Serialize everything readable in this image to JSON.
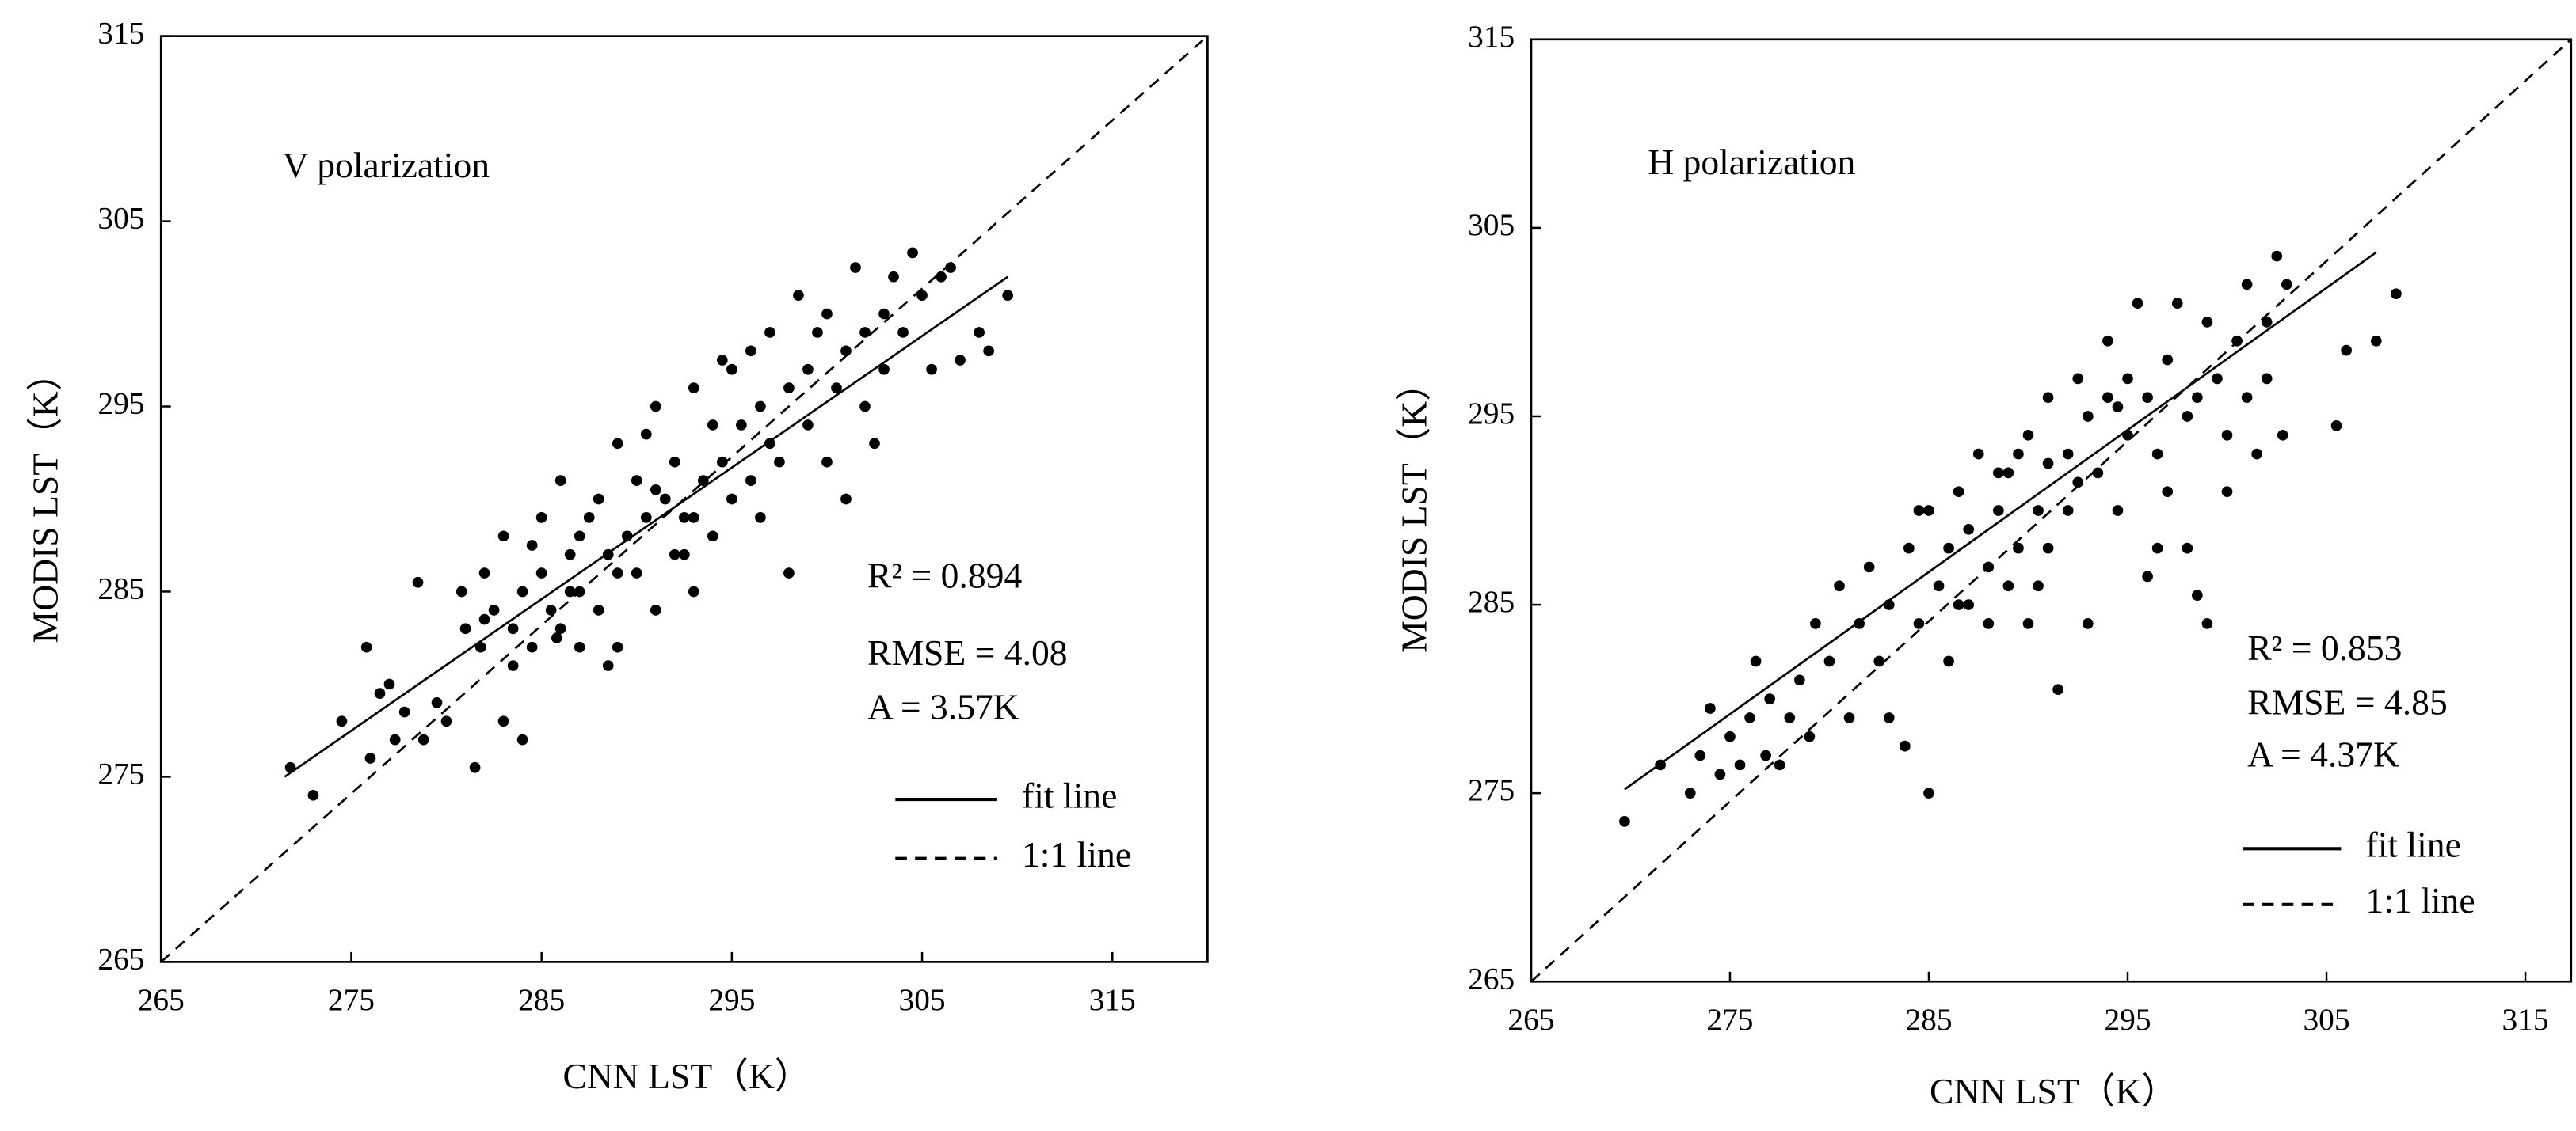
{
  "chart_data": [
    {
      "type": "scatter",
      "xlabel": "CNN LST（K）",
      "ylabel": "MODIS LST（K）",
      "annotation": "V polarization",
      "stats": [
        "R² = 0.894",
        "RMSE = 4.08",
        "A = 3.57K"
      ],
      "color": "#000000",
      "xlim": [
        265,
        320
      ],
      "ylim": [
        265,
        315
      ],
      "xticks": [
        265,
        275,
        285,
        295,
        305,
        315
      ],
      "yticks": [
        265,
        275,
        285,
        295,
        305,
        315
      ],
      "lines": [
        {
          "name": "fit line",
          "style": "solid",
          "x": [
            271.5,
            309.5
          ],
          "y": [
            275,
            302
          ]
        },
        {
          "name": "1:1 line",
          "style": "dashed"
        }
      ],
      "x": [
        271.8,
        273,
        274.5,
        275.8,
        276,
        276.5,
        277,
        277.3,
        277.8,
        278.5,
        278.8,
        279.5,
        280,
        280.8,
        281,
        281.5,
        281.8,
        282,
        282.5,
        283,
        283,
        283.5,
        284,
        284,
        284.5,
        285,
        285,
        285.5,
        286,
        286,
        286.5,
        287,
        287,
        287.5,
        288,
        288,
        288.5,
        289,
        289,
        289.5,
        290,
        290,
        290.5,
        291,
        291,
        291.5,
        292,
        292,
        292.5,
        293,
        293,
        293.5,
        294,
        294,
        294.5,
        295,
        295,
        295.5,
        296,
        296,
        296.5,
        297,
        297,
        297.5,
        298,
        298,
        298.5,
        299,
        299,
        299.5,
        300,
        300,
        300.5,
        301,
        301,
        301.5,
        302,
        302,
        302.5,
        303,
        303,
        303.5,
        304,
        304.5,
        305,
        305.5,
        306,
        306.5,
        307,
        308,
        308.5,
        309.5,
        284.5,
        286.5,
        288.5,
        290.5,
        292.5,
        287,
        289,
        291,
        293,
        285.8,
        283.5,
        282,
        296.5,
        294.5
      ],
      "values": [
        275.5,
        274,
        278,
        282,
        276,
        279.5,
        280,
        277,
        278.5,
        285.5,
        277,
        279,
        278,
        285,
        283,
        275.5,
        282,
        286,
        284,
        278,
        288,
        283,
        285,
        277,
        282,
        286,
        289,
        284,
        283,
        291,
        287,
        285,
        282,
        289,
        290,
        284,
        287,
        293,
        282,
        288,
        286,
        291,
        289,
        295,
        284,
        290,
        287,
        292,
        289,
        296,
        285,
        291,
        288,
        294,
        292,
        297,
        290,
        294,
        291,
        298,
        295,
        293,
        299,
        292,
        296,
        286,
        301,
        294,
        297,
        299,
        292,
        300,
        296,
        298,
        290,
        302.5,
        295,
        299,
        293,
        297,
        300,
        302,
        299,
        303.3,
        301,
        297,
        302,
        302.5,
        297.5,
        299,
        298,
        301,
        287.5,
        285,
        281,
        293.5,
        287,
        288,
        286,
        290.5,
        289,
        282.5,
        281,
        283.5,
        289,
        297.5
      ]
    },
    {
      "type": "scatter",
      "xlabel": "CNN LST（K）",
      "ylabel": "MODIS LST（K）",
      "annotation": "H polarization",
      "stats": [
        "R² = 0.853",
        "RMSE = 4.85",
        "A = 4.37K"
      ],
      "color": "#000000",
      "xlim": [
        265,
        317.3
      ],
      "ylim": [
        265,
        315
      ],
      "xticks": [
        265,
        275,
        285,
        295,
        305,
        315
      ],
      "yticks": [
        265,
        275,
        285,
        295,
        305,
        315
      ],
      "lines": [
        {
          "name": "fit line",
          "style": "solid",
          "x": [
            269.7,
            307.5
          ],
          "y": [
            275.2,
            303.7
          ]
        },
        {
          "name": "1:1 line",
          "style": "dashed"
        }
      ],
      "x": [
        269.7,
        271.5,
        273,
        273.5,
        274,
        274.5,
        275,
        275.5,
        276,
        276.3,
        276.8,
        277,
        277.5,
        278,
        278.5,
        279,
        279.3,
        280,
        280.5,
        281,
        281.5,
        282,
        282.5,
        283,
        283,
        283.8,
        284,
        284.5,
        285,
        285,
        285.5,
        286,
        286,
        286.5,
        287,
        287,
        287.5,
        288,
        288,
        288.5,
        289,
        289,
        289.5,
        290,
        290,
        290.5,
        291,
        291,
        291.5,
        292,
        292,
        292.5,
        293,
        293,
        293.5,
        294,
        294,
        294.5,
        295,
        295,
        295.5,
        296,
        296,
        296.5,
        297,
        297,
        297.5,
        298,
        298,
        298.5,
        299,
        299,
        299.5,
        300,
        300,
        300.5,
        301,
        301,
        301.5,
        302,
        302,
        302.5,
        302.8,
        303,
        305.5,
        306,
        307.5,
        308.5,
        296.5,
        298.5,
        288.5,
        290.5,
        286.5,
        284.5,
        292.5,
        294.5,
        289.5,
        291
      ],
      "values": [
        273.5,
        276.5,
        275,
        277,
        279.5,
        276,
        278,
        276.5,
        279,
        282,
        277,
        280,
        276.5,
        279,
        281,
        278,
        284,
        282,
        286,
        279,
        284,
        287,
        282,
        285,
        279,
        277.5,
        288,
        284,
        275,
        290,
        286,
        288,
        282,
        291,
        285,
        289,
        293,
        287,
        284,
        290,
        292,
        286,
        288,
        294,
        284,
        290,
        296,
        288,
        280.5,
        293,
        290,
        297,
        284,
        295,
        292,
        299,
        296,
        290,
        297,
        294,
        301,
        296,
        286.5,
        293,
        298,
        291,
        301,
        295,
        288,
        296,
        300,
        284,
        297,
        294,
        291,
        299,
        302,
        296,
        293,
        300,
        297,
        303.5,
        294,
        302,
        294.5,
        298.5,
        299,
        301.5,
        288,
        285.5,
        292,
        286,
        285,
        290,
        291.5,
        295.5,
        293,
        292.5
      ]
    }
  ]
}
